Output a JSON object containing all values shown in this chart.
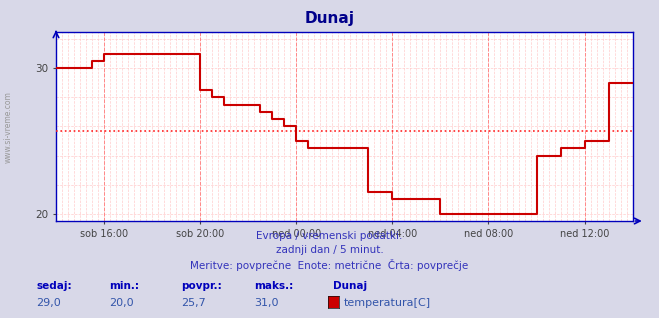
{
  "title": "Dunaj",
  "title_color": "#00008B",
  "bg_color": "#D8D8E8",
  "plot_bg_color": "#FFFFFF",
  "grid_color_major": "#FF8888",
  "grid_color_minor": "#FFCCCC",
  "line_color": "#CC0000",
  "avg_line_color": "#FF2222",
  "avg_value": 25.7,
  "ylim": [
    19.5,
    32.5
  ],
  "yticks": [
    20,
    30
  ],
  "axis_color": "#0000BB",
  "tick_color": "#444444",
  "watermark": "www.si-vreme.com",
  "subtitle1": "Evropa / vremenski podatki.",
  "subtitle2": "zadnji dan / 5 minut.",
  "subtitle3": "Meritve: povprečne  Enote: metrične  Črta: povprečje",
  "subtitle_color": "#3333BB",
  "footer_label_color": "#0000BB",
  "footer_value_color": "#3355AA",
  "sedaj": "29,0",
  "min_val": "20,0",
  "povpr": "25,7",
  "maks": "31,0",
  "legend_name": "Dunaj",
  "legend_series": "temperatura[C]",
  "xtick_labels": [
    "sob 16:00",
    "sob 20:00",
    "ned 00:00",
    "ned 04:00",
    "ned 08:00",
    "ned 12:00"
  ],
  "x_tick_pos": [
    2.0,
    6.0,
    10.0,
    14.0,
    18.0,
    22.0
  ],
  "data_x": [
    0.0,
    1.0,
    1.5,
    2.0,
    2.5,
    5.5,
    6.0,
    6.5,
    7.0,
    7.5,
    8.0,
    8.5,
    9.0,
    9.5,
    10.0,
    10.5,
    11.0,
    11.5,
    12.0,
    12.5,
    13.0,
    13.5,
    14.0,
    14.5,
    15.0,
    15.5,
    16.0,
    16.5,
    17.0,
    17.5,
    18.0,
    18.5,
    19.0,
    19.5,
    20.0,
    20.5,
    21.0,
    21.5,
    22.0,
    22.5,
    23.0,
    23.5,
    24.0
  ],
  "data_y": [
    30.0,
    30.0,
    30.5,
    31.0,
    31.0,
    31.0,
    28.5,
    28.0,
    27.5,
    27.5,
    27.5,
    27.0,
    26.5,
    26.0,
    25.0,
    24.5,
    24.5,
    24.5,
    24.5,
    24.5,
    21.5,
    21.5,
    21.0,
    21.0,
    21.0,
    21.0,
    20.0,
    20.0,
    20.0,
    20.0,
    20.0,
    20.0,
    20.0,
    20.0,
    24.0,
    24.0,
    24.5,
    24.5,
    25.0,
    25.0,
    29.0,
    29.0,
    29.0
  ]
}
